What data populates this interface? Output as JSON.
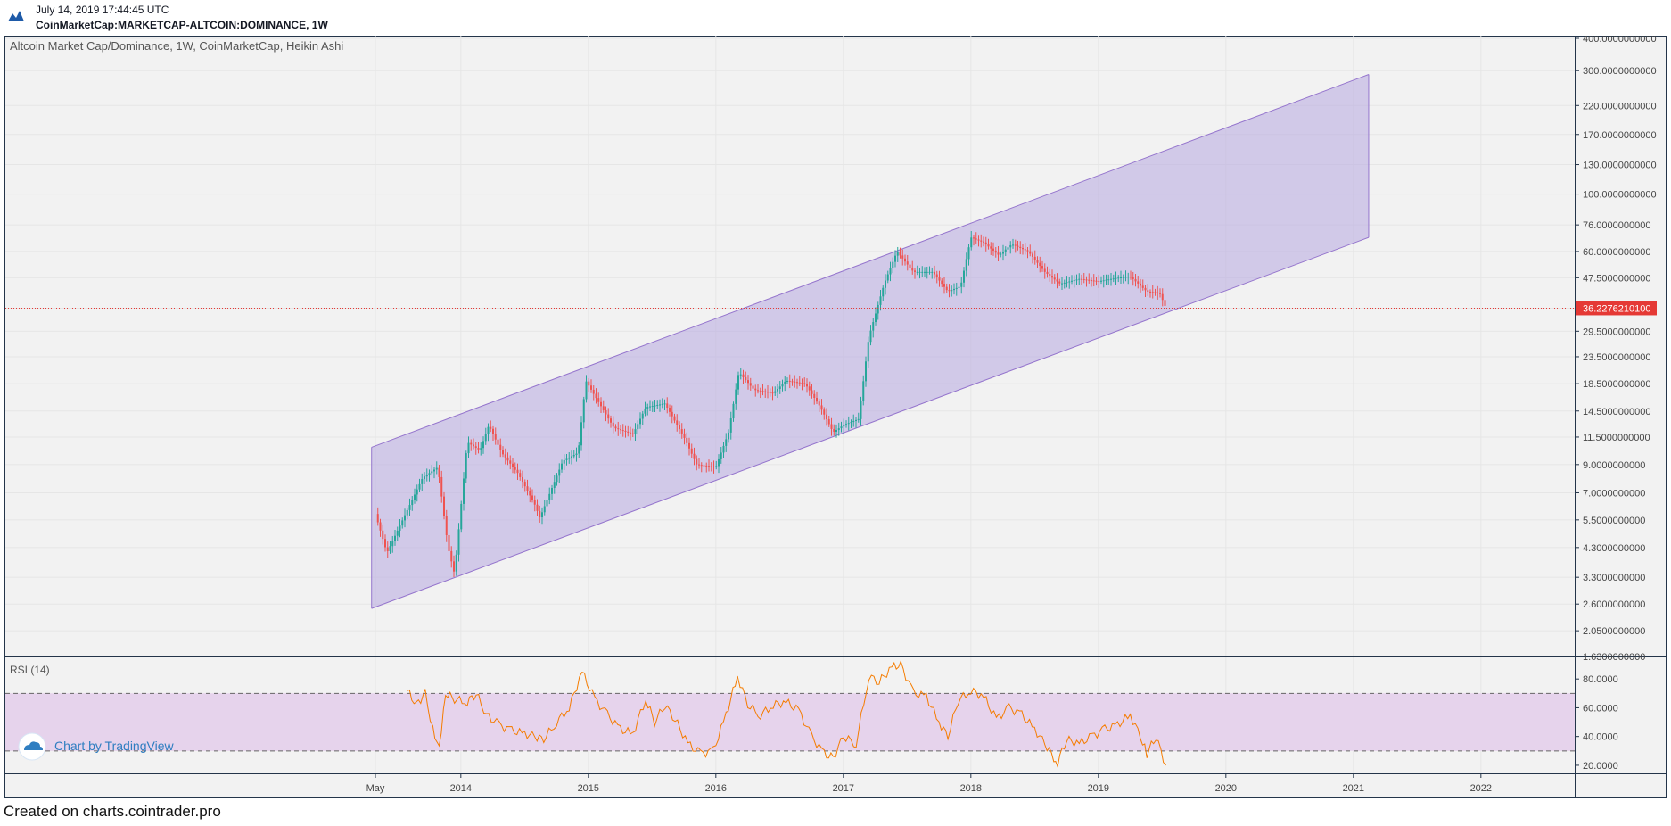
{
  "header": {
    "timestamp": "July 14, 2019 17:44:45 UTC",
    "symbol": "CoinMarketCap:MARKETCAP-ALTCOIN:DOMINANCE, 1W"
  },
  "footer": {
    "text": "Created on charts.cointrader.pro"
  },
  "watermark": {
    "text": "Chart by TradingView"
  },
  "colors": {
    "background": "#f2f2f2",
    "up_candle": "#26a69a",
    "down_candle": "#ef5350",
    "channel_fill": "#b7a8e0",
    "channel_line": "#9575cd",
    "rsi_line": "#f57c00",
    "rsi_band": "#e6d3ec",
    "price_line": "#e53935"
  },
  "chart_data": [
    {
      "type": "candlestick",
      "style": "Heikin Ashi",
      "title": "Altcoin Market Cap/Dominance, 1W, CoinMarketCap, Heikin Ashi",
      "yscale": "log",
      "ylim": [
        1.63,
        400
      ],
      "y_ticks": [
        "400.0000000000",
        "300.0000000000",
        "220.0000000000",
        "170.0000000000",
        "130.0000000000",
        "100.0000000000",
        "76.0000000000",
        "60.0000000000",
        "47.5000000000",
        "36.2276210100",
        "29.5000000000",
        "23.5000000000",
        "18.5000000000",
        "14.5000000000",
        "11.5000000000",
        "9.0000000000",
        "7.0000000000",
        "5.5000000000",
        "4.3000000000",
        "3.3000000000",
        "2.6000000000",
        "2.0500000000",
        "1.6300000000"
      ],
      "x_ticks": [
        "May",
        "2014",
        "2015",
        "2016",
        "2017",
        "2018",
        "2019",
        "2020",
        "2021",
        "2022"
      ],
      "last_value_label": "36.2276210100",
      "last_value": 36.2276,
      "path": [
        {
          "t": 2013.33,
          "v": 5.8
        },
        {
          "t": 2013.42,
          "v": 4.1
        },
        {
          "t": 2013.58,
          "v": 6.0
        },
        {
          "t": 2013.7,
          "v": 8.0
        },
        {
          "t": 2013.82,
          "v": 8.8
        },
        {
          "t": 2013.9,
          "v": 4.3
        },
        {
          "t": 2013.95,
          "v": 3.4
        },
        {
          "t": 2014.05,
          "v": 11.0
        },
        {
          "t": 2014.15,
          "v": 10.2
        },
        {
          "t": 2014.22,
          "v": 12.8
        },
        {
          "t": 2014.32,
          "v": 10.0
        },
        {
          "t": 2014.45,
          "v": 8.3
        },
        {
          "t": 2014.58,
          "v": 6.3
        },
        {
          "t": 2014.62,
          "v": 5.6
        },
        {
          "t": 2014.8,
          "v": 9.3
        },
        {
          "t": 2014.92,
          "v": 10.0
        },
        {
          "t": 2014.98,
          "v": 19.0
        },
        {
          "t": 2015.07,
          "v": 16.0
        },
        {
          "t": 2015.2,
          "v": 12.5
        },
        {
          "t": 2015.35,
          "v": 11.8
        },
        {
          "t": 2015.45,
          "v": 15.0
        },
        {
          "t": 2015.6,
          "v": 15.5
        },
        {
          "t": 2015.75,
          "v": 11.5
        },
        {
          "t": 2015.85,
          "v": 9.0
        },
        {
          "t": 2016.0,
          "v": 8.8
        },
        {
          "t": 2016.1,
          "v": 12.0
        },
        {
          "t": 2016.18,
          "v": 20.5
        },
        {
          "t": 2016.3,
          "v": 17.5
        },
        {
          "t": 2016.45,
          "v": 17.0
        },
        {
          "t": 2016.55,
          "v": 19.0
        },
        {
          "t": 2016.7,
          "v": 18.5
        },
        {
          "t": 2016.82,
          "v": 15.0
        },
        {
          "t": 2016.92,
          "v": 12.0
        },
        {
          "t": 2017.0,
          "v": 12.8
        },
        {
          "t": 2017.12,
          "v": 13.5
        },
        {
          "t": 2017.2,
          "v": 28.0
        },
        {
          "t": 2017.32,
          "v": 45.0
        },
        {
          "t": 2017.42,
          "v": 60.0
        },
        {
          "t": 2017.55,
          "v": 50.0
        },
        {
          "t": 2017.7,
          "v": 50.0
        },
        {
          "t": 2017.82,
          "v": 42.0
        },
        {
          "t": 2017.92,
          "v": 44.0
        },
        {
          "t": 2018.0,
          "v": 68.0
        },
        {
          "t": 2018.1,
          "v": 65.0
        },
        {
          "t": 2018.22,
          "v": 58.0
        },
        {
          "t": 2018.32,
          "v": 64.0
        },
        {
          "t": 2018.45,
          "v": 60.0
        },
        {
          "t": 2018.58,
          "v": 50.0
        },
        {
          "t": 2018.7,
          "v": 45.0
        },
        {
          "t": 2018.85,
          "v": 47.0
        },
        {
          "t": 2019.0,
          "v": 46.0
        },
        {
          "t": 2019.15,
          "v": 47.5
        },
        {
          "t": 2019.25,
          "v": 48.0
        },
        {
          "t": 2019.38,
          "v": 42.0
        },
        {
          "t": 2019.48,
          "v": 41.5
        },
        {
          "t": 2019.53,
          "v": 36.2
        }
      ],
      "channel": {
        "upper": [
          {
            "t": 2013.3,
            "v": 10.5
          },
          {
            "t": 2021.12,
            "v": 290
          }
        ],
        "lower": [
          {
            "t": 2013.3,
            "v": 2.5
          },
          {
            "t": 2021.12,
            "v": 68
          }
        ]
      }
    },
    {
      "type": "line",
      "title": "RSI (14)",
      "ylim": [
        15,
        95
      ],
      "y_ticks": [
        "80.0000",
        "60.0000",
        "40.0000",
        "20.0000"
      ],
      "bands": [
        30,
        70
      ],
      "series": [
        {
          "points": [
            {
              "t": 2013.58,
              "v": 72
            },
            {
              "t": 2013.65,
              "v": 62
            },
            {
              "t": 2013.72,
              "v": 70
            },
            {
              "t": 2013.78,
              "v": 45
            },
            {
              "t": 2013.83,
              "v": 33
            },
            {
              "t": 2013.88,
              "v": 70
            },
            {
              "t": 2013.95,
              "v": 66
            },
            {
              "t": 2014.05,
              "v": 64
            },
            {
              "t": 2014.12,
              "v": 70
            },
            {
              "t": 2014.2,
              "v": 55
            },
            {
              "t": 2014.3,
              "v": 48
            },
            {
              "t": 2014.4,
              "v": 44
            },
            {
              "t": 2014.5,
              "v": 42
            },
            {
              "t": 2014.58,
              "v": 40
            },
            {
              "t": 2014.65,
              "v": 38
            },
            {
              "t": 2014.75,
              "v": 50
            },
            {
              "t": 2014.85,
              "v": 60
            },
            {
              "t": 2014.95,
              "v": 85
            },
            {
              "t": 2015.05,
              "v": 66
            },
            {
              "t": 2015.15,
              "v": 55
            },
            {
              "t": 2015.25,
              "v": 45
            },
            {
              "t": 2015.35,
              "v": 42
            },
            {
              "t": 2015.45,
              "v": 66
            },
            {
              "t": 2015.52,
              "v": 50
            },
            {
              "t": 2015.6,
              "v": 62
            },
            {
              "t": 2015.68,
              "v": 52
            },
            {
              "t": 2015.78,
              "v": 35
            },
            {
              "t": 2015.88,
              "v": 28
            },
            {
              "t": 2015.98,
              "v": 30
            },
            {
              "t": 2016.08,
              "v": 55
            },
            {
              "t": 2016.17,
              "v": 82
            },
            {
              "t": 2016.25,
              "v": 62
            },
            {
              "t": 2016.35,
              "v": 55
            },
            {
              "t": 2016.45,
              "v": 62
            },
            {
              "t": 2016.55,
              "v": 64
            },
            {
              "t": 2016.65,
              "v": 58
            },
            {
              "t": 2016.75,
              "v": 40
            },
            {
              "t": 2016.85,
              "v": 28
            },
            {
              "t": 2016.92,
              "v": 25
            },
            {
              "t": 2017.0,
              "v": 40
            },
            {
              "t": 2017.1,
              "v": 35
            },
            {
              "t": 2017.2,
              "v": 82
            },
            {
              "t": 2017.28,
              "v": 78
            },
            {
              "t": 2017.38,
              "v": 88
            },
            {
              "t": 2017.45,
              "v": 90
            },
            {
              "t": 2017.55,
              "v": 70
            },
            {
              "t": 2017.65,
              "v": 68
            },
            {
              "t": 2017.75,
              "v": 50
            },
            {
              "t": 2017.82,
              "v": 40
            },
            {
              "t": 2017.9,
              "v": 65
            },
            {
              "t": 2018.0,
              "v": 72
            },
            {
              "t": 2018.1,
              "v": 68
            },
            {
              "t": 2018.2,
              "v": 52
            },
            {
              "t": 2018.3,
              "v": 60
            },
            {
              "t": 2018.4,
              "v": 55
            },
            {
              "t": 2018.5,
              "v": 45
            },
            {
              "t": 2018.58,
              "v": 35
            },
            {
              "t": 2018.65,
              "v": 25
            },
            {
              "t": 2018.68,
              "v": 22
            },
            {
              "t": 2018.75,
              "v": 38
            },
            {
              "t": 2018.85,
              "v": 35
            },
            {
              "t": 2018.95,
              "v": 40
            },
            {
              "t": 2019.05,
              "v": 45
            },
            {
              "t": 2019.15,
              "v": 48
            },
            {
              "t": 2019.25,
              "v": 55
            },
            {
              "t": 2019.33,
              "v": 40
            },
            {
              "t": 2019.38,
              "v": 28
            },
            {
              "t": 2019.45,
              "v": 40
            },
            {
              "t": 2019.53,
              "v": 20
            }
          ]
        }
      ]
    }
  ]
}
